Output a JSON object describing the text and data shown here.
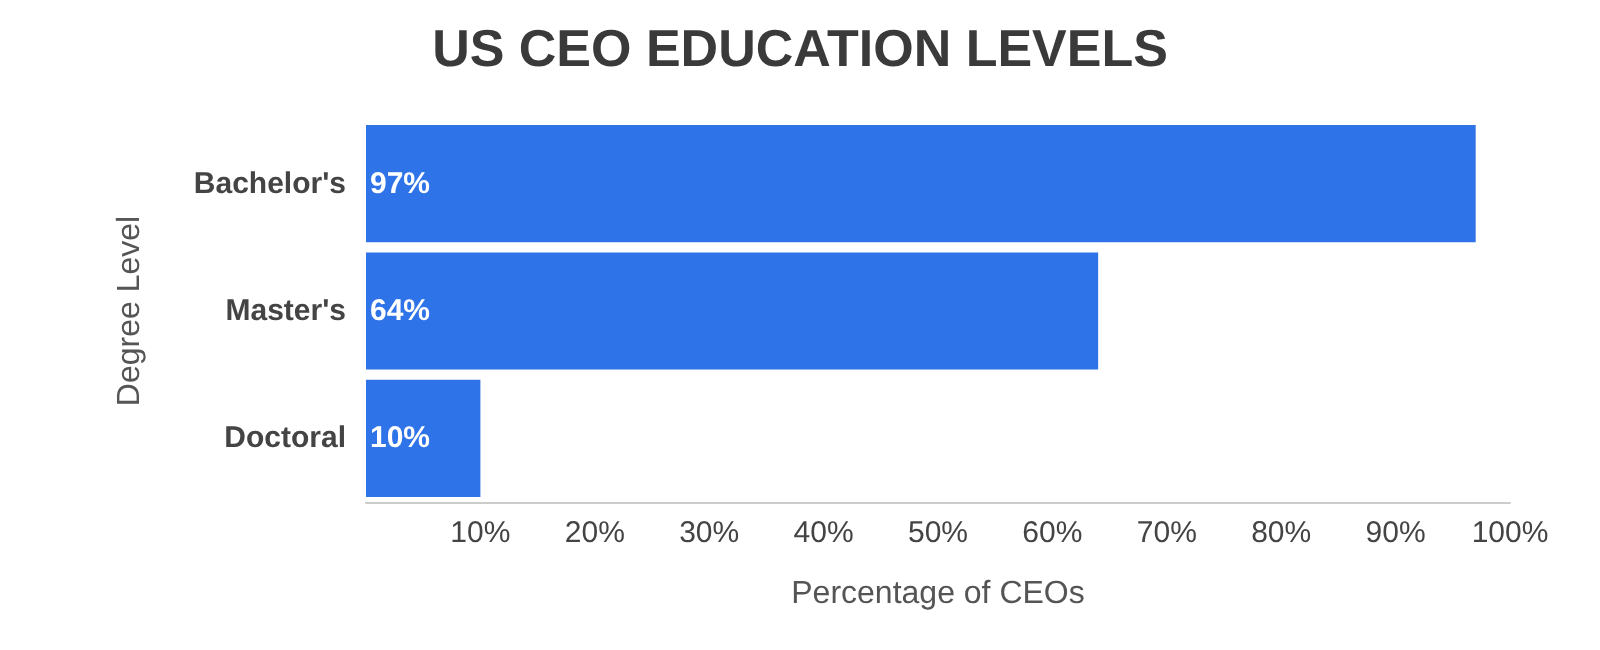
{
  "chart_data": {
    "type": "bar",
    "orientation": "horizontal",
    "title": "US CEO EDUCATION LEVELS",
    "xlabel": "Percentage of CEOs",
    "ylabel": "Degree Level",
    "categories": [
      "Bachelor's",
      "Master's",
      "Doctoral"
    ],
    "values": [
      97,
      64,
      10
    ],
    "value_labels": [
      "97%",
      "64%",
      "10%"
    ],
    "color": "#2f73e8",
    "xlim": [
      0,
      100
    ],
    "xticks": [
      {
        "value": 10,
        "label": "10%"
      },
      {
        "value": 20,
        "label": "20%"
      },
      {
        "value": 30,
        "label": "30%"
      },
      {
        "value": 40,
        "label": "40%"
      },
      {
        "value": 50,
        "label": "50%"
      },
      {
        "value": 60,
        "label": "60%"
      },
      {
        "value": 70,
        "label": "70%"
      },
      {
        "value": 80,
        "label": "80%"
      },
      {
        "value": 90,
        "label": "90%"
      },
      {
        "value": 100,
        "label": "100%"
      }
    ],
    "grid": false
  }
}
